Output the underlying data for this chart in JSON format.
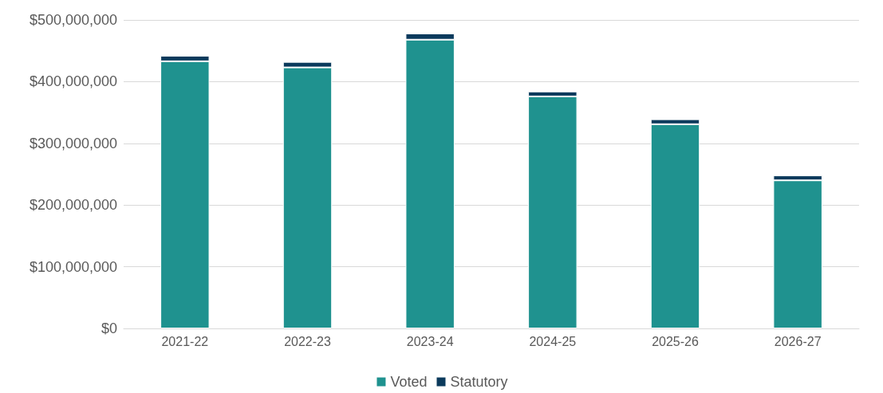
{
  "chart_data": {
    "type": "bar",
    "stacked": true,
    "categories": [
      "2021-22",
      "2022-23",
      "2023-24",
      "2024-25",
      "2025-26",
      "2026-27"
    ],
    "series": [
      {
        "name": "Voted",
        "color": "#1f928f",
        "values": [
          433000000,
          423000000,
          468000000,
          376000000,
          331000000,
          240000000
        ]
      },
      {
        "name": "Statutory",
        "color": "#0b3a5c",
        "values": [
          9000000,
          9000000,
          10000000,
          8000000,
          8000000,
          8000000
        ]
      }
    ],
    "ylim": [
      0,
      500000000
    ],
    "yticks": [
      {
        "value": 0,
        "label": "$0"
      },
      {
        "value": 100000000,
        "label": "$100,000,000"
      },
      {
        "value": 200000000,
        "label": "$200,000,000"
      },
      {
        "value": 300000000,
        "label": "$300,000,000"
      },
      {
        "value": 400000000,
        "label": "$400,000,000"
      },
      {
        "value": 500000000,
        "label": "$500,000,000"
      }
    ],
    "grid": "y",
    "legend": "bottom"
  }
}
